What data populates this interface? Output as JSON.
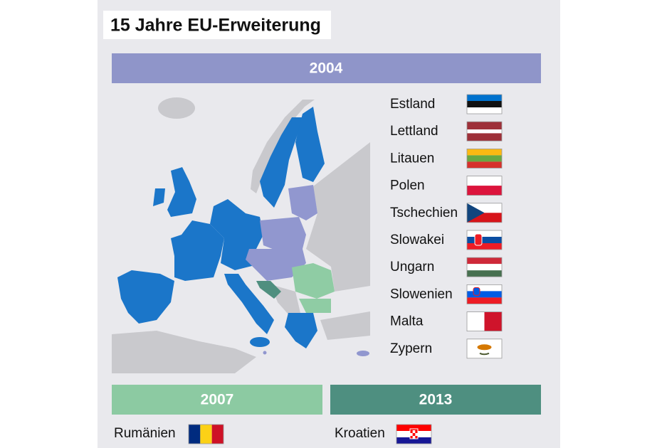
{
  "title": "15 Jahre EU-Erweiterung",
  "sections": [
    {
      "year": "2004",
      "countries": [
        "Estland",
        "Lettland",
        "Litauen",
        "Polen",
        "Tschechien",
        "Slowakei",
        "Ungarn",
        "Slowenien",
        "Malta",
        "Zypern"
      ]
    },
    {
      "year": "2007",
      "countries": [
        "Rumänien"
      ]
    },
    {
      "year": "2013",
      "countries": [
        "Kroatien"
      ]
    }
  ]
}
